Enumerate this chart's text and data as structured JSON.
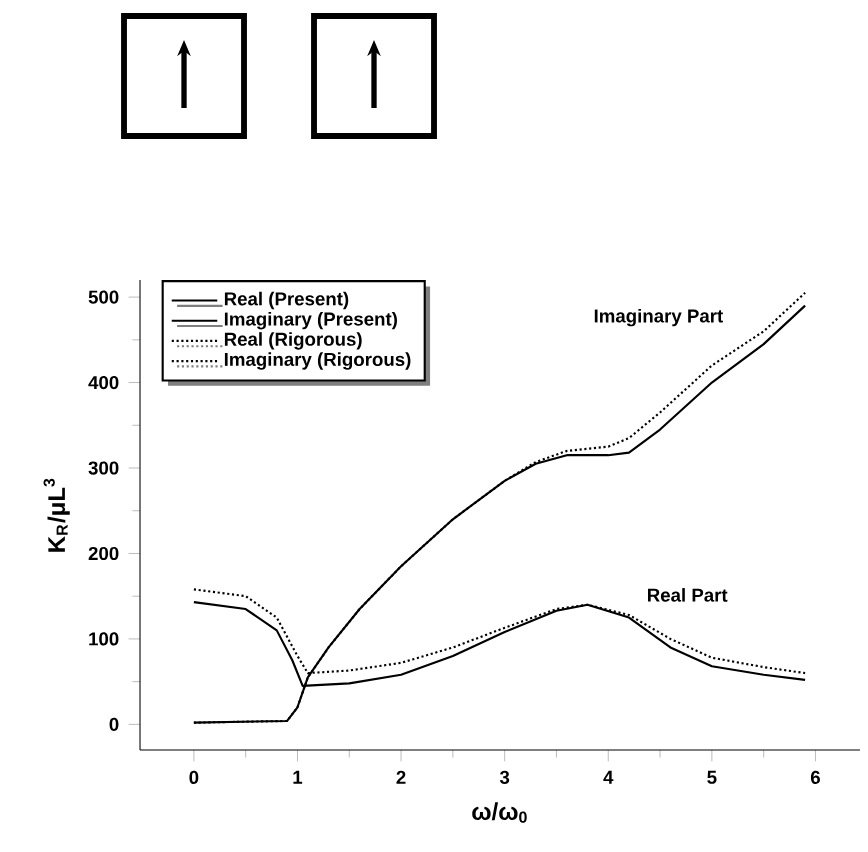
{
  "chart_data": {
    "type": "line",
    "xlabel": "ω/ω$_{0}$",
    "ylabel": "K$_{R}$/μL$^{3}$",
    "xlim": [
      -0.52,
      6.43
    ],
    "ylim": [
      -30,
      520
    ],
    "xticks": [
      0,
      1,
      2,
      3,
      4,
      5,
      6
    ],
    "yticks": [
      0,
      100,
      200,
      300,
      400,
      500
    ],
    "grid": false,
    "legend": "top left",
    "marker": "none",
    "annotations": [
      "Imaginary Part",
      "Real Part"
    ],
    "series": [
      {
        "name": "Real (Present)",
        "color": "#000000",
        "line_style": "solid",
        "x": [
          0,
          0.5,
          0.8,
          0.95,
          1.05,
          1.5,
          2,
          2.5,
          3,
          3.5,
          3.8,
          4.2,
          4.6,
          5,
          5.5,
          5.9
        ],
        "values": [
          143,
          135,
          110,
          75,
          45,
          48,
          58,
          80,
          108,
          133,
          140,
          125,
          90,
          68,
          58,
          52
        ]
      },
      {
        "name": "Imaginary (Present)",
        "color": "#000000",
        "line_style": "solid",
        "x": [
          0,
          0.9,
          1.0,
          1.1,
          1.3,
          1.6,
          2,
          2.5,
          3,
          3.3,
          3.6,
          4,
          4.2,
          4.5,
          5,
          5.5,
          5.9
        ],
        "values": [
          2,
          4,
          20,
          55,
          90,
          135,
          185,
          240,
          285,
          305,
          315,
          315,
          318,
          345,
          400,
          445,
          490
        ]
      },
      {
        "name": "Real (Rigorous)",
        "color": "#000000",
        "line_style": "dotted",
        "x": [
          0,
          0.5,
          0.8,
          1.0,
          1.1,
          1.5,
          2,
          2.5,
          3,
          3.5,
          3.8,
          4.2,
          4.6,
          5,
          5.5,
          5.9
        ],
        "values": [
          158,
          150,
          125,
          80,
          60,
          63,
          72,
          90,
          113,
          135,
          140,
          128,
          100,
          78,
          67,
          60
        ]
      },
      {
        "name": "Imaginary (Rigorous)",
        "color": "#000000",
        "line_style": "dotted",
        "x": [
          0,
          0.9,
          1.0,
          1.1,
          1.3,
          1.6,
          2,
          2.5,
          3,
          3.3,
          3.6,
          4,
          4.2,
          4.5,
          5,
          5.5,
          5.9
        ],
        "values": [
          2,
          4,
          20,
          55,
          90,
          135,
          185,
          240,
          285,
          307,
          320,
          325,
          335,
          365,
          420,
          460,
          505
        ]
      }
    ]
  }
}
